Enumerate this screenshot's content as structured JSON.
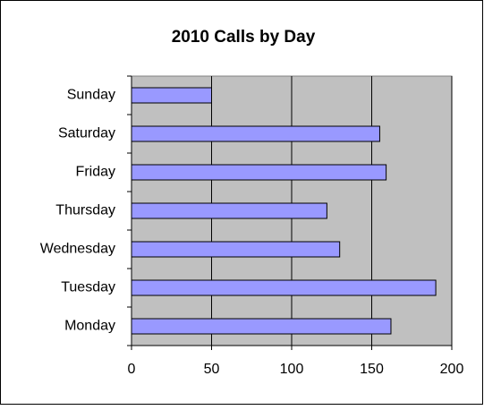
{
  "chart_data": {
    "type": "barh",
    "title": "2010 Calls by Day",
    "categories": [
      "Monday",
      "Tuesday",
      "Wednesday",
      "Thursday",
      "Friday",
      "Saturday",
      "Sunday"
    ],
    "values": [
      162,
      190,
      130,
      122,
      159,
      155,
      50
    ],
    "color": "#9999ff",
    "plot_background": "#c0c0c0",
    "xlim": [
      0,
      200
    ],
    "xticks": [
      0,
      50,
      100,
      150,
      200
    ],
    "grid": true
  }
}
